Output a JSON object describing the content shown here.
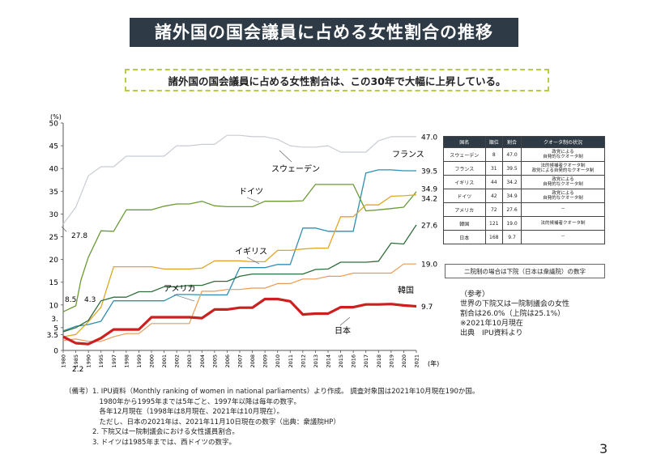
{
  "page": {
    "title": "諸外国の国会議員に占める女性割合の推移",
    "subtitle": "諸外国の国会議員に占める女性割合は、この30年で大幅に上昇している。",
    "page_number": "3"
  },
  "chart_data": {
    "type": "line",
    "ylabel": "(%)",
    "xlabel": "(年)",
    "ylim": [
      0,
      50
    ],
    "yticks": [
      "0",
      "3.5",
      "5",
      "10",
      "15",
      "20",
      "25",
      "30",
      "35",
      "40",
      "45",
      "50"
    ],
    "ytick_values": [
      0,
      3.5,
      5,
      10,
      15,
      20,
      25,
      30,
      35,
      40,
      45,
      50
    ],
    "extra_ytick_label": "3.",
    "extra_ytick_value": 7,
    "xticks": [
      "1980",
      "1985",
      "1990",
      "1995",
      "1997",
      "1998",
      "1999",
      "2000",
      "2001",
      "2002",
      "2003",
      "2004",
      "2005",
      "2006",
      "2007",
      "2008",
      "2009",
      "2010",
      "2011",
      "2012",
      "2013",
      "2014",
      "2015",
      "2016",
      "2017",
      "2018",
      "2019",
      "2020",
      "2021"
    ],
    "series": [
      {
        "name": "スウェーデン",
        "color": "#c8ccd4",
        "width": 1.2,
        "end_label": "47.0",
        "x": [
          "1980",
          "1985",
          "1990",
          "1995",
          "1997",
          "1998",
          "1999",
          "2000",
          "2001",
          "2002",
          "2003",
          "2004",
          "2005",
          "2006",
          "2007",
          "2008",
          "2009",
          "2010",
          "2011",
          "2012",
          "2013",
          "2014",
          "2015",
          "2016",
          "2017",
          "2018",
          "2019",
          "2020",
          "2021"
        ],
        "y": [
          27.8,
          31.5,
          38.4,
          40.4,
          40.4,
          42.7,
          42.7,
          42.7,
          42.7,
          45.0,
          45.0,
          45.3,
          45.3,
          47.3,
          47.3,
          47.0,
          47.0,
          46.4,
          45.0,
          44.7,
          44.7,
          45.0,
          43.6,
          43.6,
          43.6,
          46.1,
          47.0,
          47.0,
          47.0
        ]
      },
      {
        "name": "フランス",
        "color": "#2d8fb0",
        "width": 1.3,
        "end_label": "39.5",
        "x": [
          "1980",
          "1985",
          "1990",
          "1995",
          "1997",
          "1998",
          "1999",
          "2000",
          "2001",
          "2002",
          "2003",
          "2004",
          "2005",
          "2006",
          "2007",
          "2008",
          "2009",
          "2010",
          "2011",
          "2012",
          "2013",
          "2014",
          "2015",
          "2016",
          "2017",
          "2018",
          "2019",
          "2020",
          "2021"
        ],
        "y": [
          4.3,
          5.3,
          5.7,
          6.4,
          10.9,
          10.9,
          10.9,
          10.9,
          10.9,
          12.3,
          12.3,
          12.2,
          12.2,
          12.2,
          18.2,
          18.2,
          18.2,
          18.9,
          18.9,
          26.9,
          26.9,
          26.2,
          26.2,
          26.2,
          39.0,
          39.7,
          39.7,
          39.5,
          39.5
        ]
      },
      {
        "name": "ドイツ",
        "color": "#6b9a36",
        "width": 1.3,
        "end_label": "34.9",
        "x": [
          "1980",
          "1985",
          "1987",
          "1990",
          "1995",
          "1997",
          "1998",
          "1999",
          "2000",
          "2001",
          "2002",
          "2003",
          "2004",
          "2005",
          "2006",
          "2007",
          "2008",
          "2009",
          "2010",
          "2011",
          "2012",
          "2013",
          "2014",
          "2015",
          "2016",
          "2017",
          "2018",
          "2019",
          "2020",
          "2021"
        ],
        "y": [
          8.5,
          9.8,
          15.4,
          20.5,
          26.3,
          26.2,
          30.9,
          30.9,
          30.9,
          31.7,
          32.2,
          32.2,
          32.8,
          31.8,
          31.6,
          31.6,
          31.6,
          32.8,
          32.8,
          32.8,
          32.9,
          36.5,
          36.5,
          36.5,
          36.5,
          30.7,
          30.9,
          31.2,
          31.5,
          34.9
        ]
      },
      {
        "name": "イギリス",
        "color": "#e0a626",
        "width": 1.3,
        "end_label": "34.2",
        "x": [
          "1980",
          "1985",
          "1990",
          "1995",
          "1997",
          "1998",
          "1999",
          "2000",
          "2001",
          "2002",
          "2003",
          "2004",
          "2005",
          "2006",
          "2007",
          "2008",
          "2009",
          "2010",
          "2011",
          "2012",
          "2013",
          "2014",
          "2015",
          "2016",
          "2017",
          "2018",
          "2019",
          "2020",
          "2021"
        ],
        "y": [
          3.0,
          3.5,
          6.3,
          9.5,
          18.4,
          18.4,
          18.4,
          18.4,
          17.9,
          17.9,
          17.9,
          18.1,
          19.7,
          19.7,
          19.7,
          19.5,
          19.5,
          22.0,
          22.0,
          22.3,
          22.5,
          22.5,
          29.4,
          29.4,
          32.0,
          32.0,
          33.9,
          34.0,
          34.2
        ]
      },
      {
        "name": "アメリカ",
        "color": "#2f6e3c",
        "width": 1.3,
        "end_label": "27.6",
        "x": [
          "1980",
          "1985",
          "1990",
          "1995",
          "1997",
          "1998",
          "1999",
          "2000",
          "2001",
          "2002",
          "2003",
          "2004",
          "2005",
          "2006",
          "2007",
          "2008",
          "2009",
          "2010",
          "2011",
          "2012",
          "2013",
          "2014",
          "2015",
          "2016",
          "2017",
          "2018",
          "2019",
          "2020",
          "2021"
        ],
        "y": [
          4.1,
          5.0,
          6.6,
          10.9,
          11.7,
          11.7,
          12.9,
          12.9,
          14.0,
          14.0,
          14.3,
          14.3,
          15.2,
          15.2,
          16.3,
          16.8,
          16.8,
          16.8,
          16.8,
          16.8,
          17.8,
          17.9,
          19.4,
          19.4,
          19.4,
          19.6,
          23.6,
          23.4,
          27.6
        ]
      },
      {
        "name": "韓国",
        "color": "#e89a55",
        "width": 1.2,
        "end_label": "19.0",
        "x": [
          "1980",
          "1985",
          "1990",
          "1995",
          "1997",
          "1998",
          "1999",
          "2000",
          "2001",
          "2002",
          "2003",
          "2004",
          "2005",
          "2006",
          "2007",
          "2008",
          "2009",
          "2010",
          "2011",
          "2012",
          "2013",
          "2014",
          "2015",
          "2016",
          "2017",
          "2018",
          "2019",
          "2020",
          "2021"
        ],
        "y": [
          2.2,
          2.5,
          2.0,
          2.0,
          3.0,
          3.7,
          3.7,
          5.9,
          5.9,
          5.9,
          5.9,
          13.0,
          13.0,
          13.4,
          13.4,
          13.7,
          13.7,
          14.7,
          14.7,
          15.7,
          15.7,
          16.3,
          16.3,
          17.0,
          17.0,
          17.0,
          17.0,
          19.0,
          19.0
        ]
      },
      {
        "name": "日本",
        "color": "#cc1f1f",
        "width": 3.2,
        "end_label": "9.7",
        "x": [
          "1980",
          "1985",
          "1990",
          "1995",
          "1997",
          "1998",
          "1999",
          "2000",
          "2001",
          "2002",
          "2003",
          "2004",
          "2005",
          "2006",
          "2007",
          "2008",
          "2009",
          "2010",
          "2011",
          "2012",
          "2013",
          "2014",
          "2015",
          "2016",
          "2017",
          "2018",
          "2019",
          "2020",
          "2021"
        ],
        "y": [
          3.0,
          1.6,
          1.4,
          2.7,
          4.6,
          4.6,
          4.6,
          7.3,
          7.3,
          7.3,
          7.3,
          7.1,
          9.0,
          9.0,
          9.4,
          9.4,
          11.3,
          11.3,
          10.8,
          7.9,
          8.1,
          8.1,
          9.5,
          9.5,
          10.1,
          10.1,
          10.2,
          9.9,
          9.7
        ]
      }
    ],
    "annotations": [
      {
        "text": "スウェーデン",
        "series": 0
      },
      {
        "text": "フランス",
        "series": 1
      },
      {
        "text": "ドイツ",
        "series": 2
      },
      {
        "text": "イギリス",
        "series": 3
      },
      {
        "text": "アメリカ",
        "series": 4
      },
      {
        "text": "韓国",
        "series": 5
      },
      {
        "text": "日本",
        "series": 6
      },
      {
        "text": "27.8"
      },
      {
        "text": "8.5"
      },
      {
        "text": "4.3"
      },
      {
        "text": "2.2"
      }
    ]
  },
  "right_table": {
    "headers": [
      "国名",
      "順位",
      "割合",
      "クオータ制の状況"
    ],
    "rows": [
      [
        "スウェーデン",
        "8",
        "47.0",
        "政党による\n自発的なクオータ制"
      ],
      [
        "フランス",
        "31",
        "39.5",
        "法的候補者クオータ制\n政党による自発的なクオータ制"
      ],
      [
        "イギリス",
        "44",
        "34.2",
        "政党による\n自発的なクオータ制"
      ],
      [
        "ドイツ",
        "42",
        "34.9",
        "政党による\n自発的なクオータ制"
      ],
      [
        "アメリカ",
        "72",
        "27.6",
        "－"
      ],
      [
        "韓国",
        "121",
        "19.0",
        "法的候補者クオータ制"
      ],
      [
        "日本",
        "168",
        "9.7",
        "－"
      ]
    ],
    "bicameral_note": "二院制の場合は下院（日本は衆議院）の数字"
  },
  "reference": [
    "（参考）",
    "世界の下院又は一院制議会の女性",
    "割合は26.0%（上院は25.1%）",
    "※2021年10月現在",
    "出典　IPU資料より"
  ],
  "notes": [
    "（備考）1. IPU資料（Monthly ranking of women in national parliaments）より作成。 調査対象国は2021年10月現在190か国。",
    "　　　　　1980年から1995年までは5年ごと、1997年以降は毎年の数字。",
    "　　　　　各年12月現在（1998年は8月現在、2021年は10月現在）。",
    "　　　　　ただし、日本の2021年は、2021年11月10日現在の数字（出典：衆議院HP）",
    "　　　　2. 下院又は一院制議会における女性議員割合。",
    "　　　　3. ドイツは1985年までは、西ドイツの数字。"
  ]
}
